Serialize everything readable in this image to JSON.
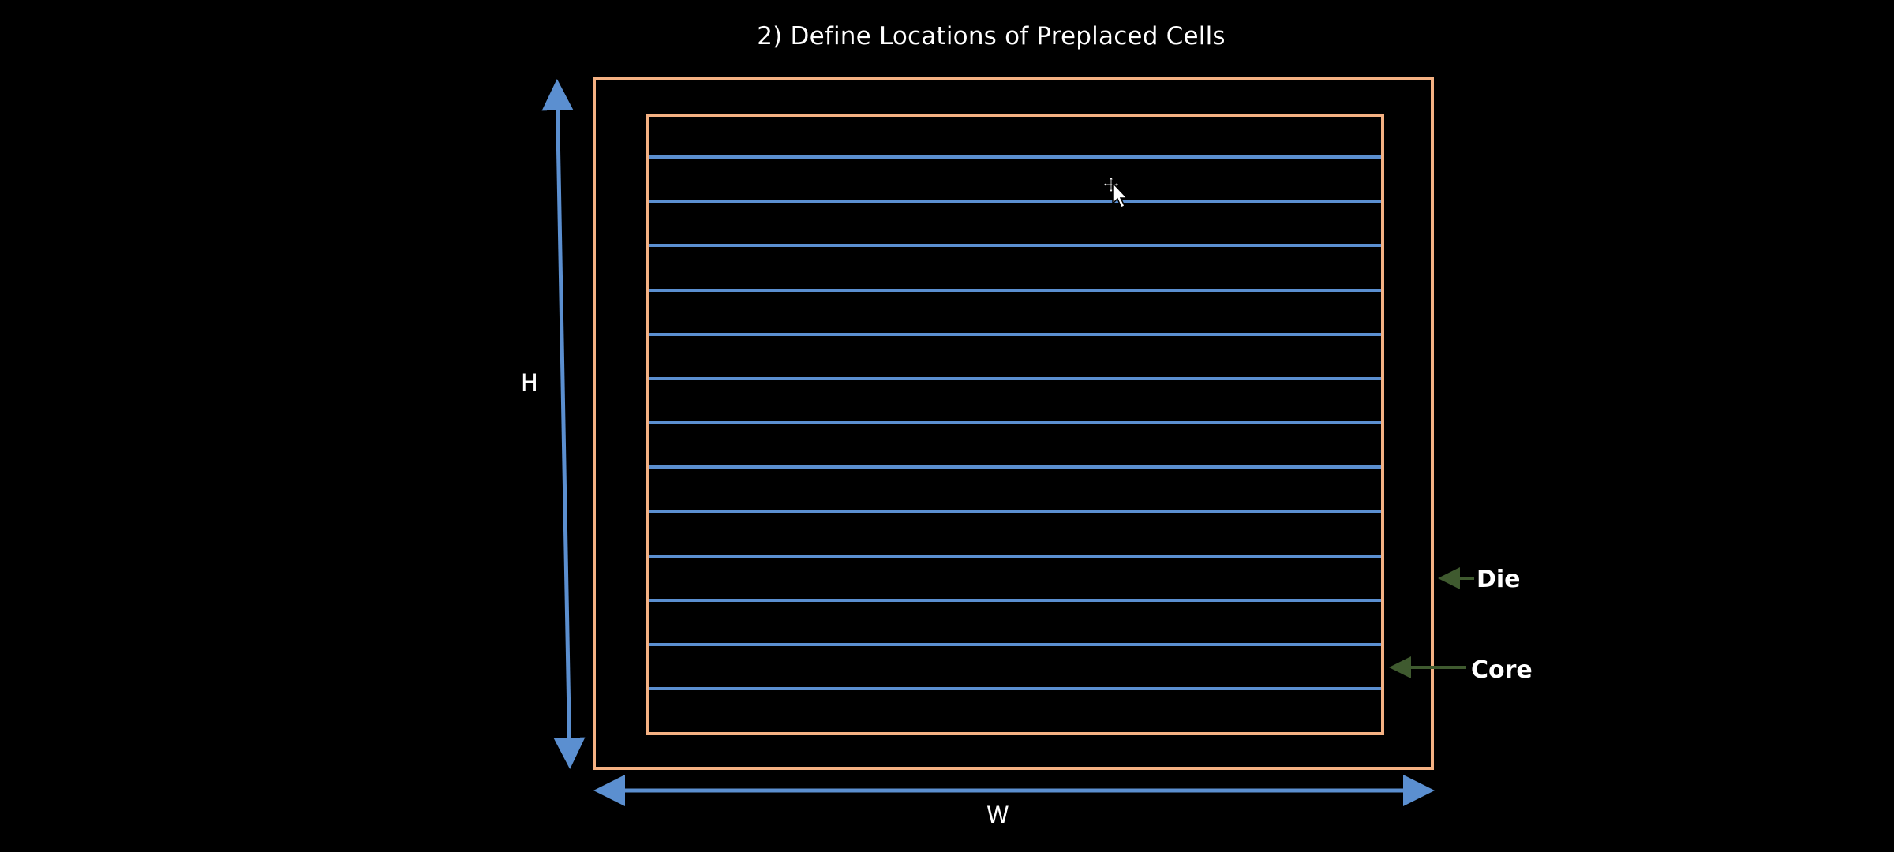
{
  "title": "2) Define Locations of Preplaced Cells",
  "labels": {
    "height": "H",
    "width": "W",
    "die": "Die",
    "core": "Core"
  },
  "colors": {
    "background": "#000000",
    "die_border": "#f4b183",
    "core_border": "#f4b183",
    "rows": "#5b8fd0",
    "dimension_arrows": "#5b8fd0",
    "pointer_arrows": "#3f5a2f",
    "text": "#ffffff"
  },
  "rows": {
    "count": 13
  },
  "icons": [
    "move-cursor-icon"
  ]
}
